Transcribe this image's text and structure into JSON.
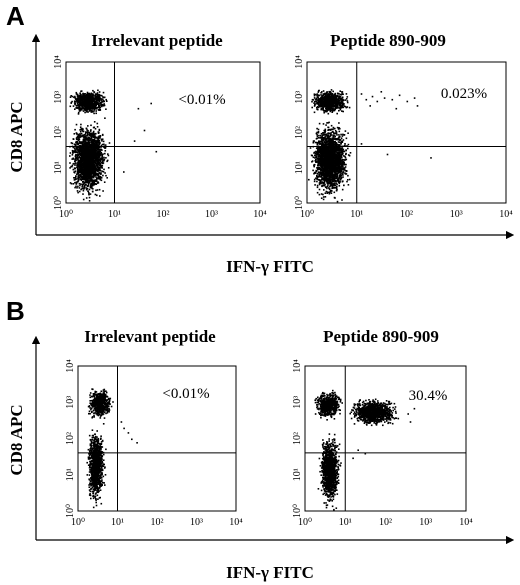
{
  "figure": {
    "panels": [
      {
        "letter": "A",
        "xlabel": "IFN-γ FITC",
        "ylabel": "CD8 APC"
      },
      {
        "letter": "B",
        "xlabel": "IFN-γ FITC",
        "ylabel": "CD8 APC"
      }
    ]
  },
  "chart_data": [
    {
      "type": "scatter",
      "panel": "A",
      "title": "Irrelevant peptide",
      "xlabel": "IFN-γ FITC",
      "ylabel": "CD8 APC",
      "x_scale": "log",
      "y_scale": "log",
      "xlim": [
        1,
        10000
      ],
      "ylim": [
        1,
        10000
      ],
      "x_ticks": [
        "10⁰",
        "10¹",
        "10²",
        "10³",
        "10⁴"
      ],
      "y_ticks": [
        "10⁰",
        "10¹",
        "10²",
        "10³",
        "10⁴"
      ],
      "gate": {
        "x": 10,
        "y": 40
      },
      "annotation": "<0.01%",
      "populations": [
        {
          "name": "CD8+ IFN-γ−",
          "x_range": [
            1,
            8
          ],
          "y_range": [
            300,
            2000
          ]
        },
        {
          "name": "CD8− IFN-γ−",
          "x_range": [
            1,
            8
          ],
          "y_range": [
            1,
            300
          ]
        }
      ],
      "points": [
        [
          30,
          500
        ],
        [
          40,
          120
        ],
        [
          25,
          60
        ],
        [
          70,
          30
        ],
        [
          15,
          8
        ],
        [
          55,
          700
        ]
      ]
    },
    {
      "type": "scatter",
      "panel": "A",
      "title": "Peptide 890-909",
      "xlabel": "IFN-γ FITC",
      "ylabel": "CD8 APC",
      "x_scale": "log",
      "y_scale": "log",
      "xlim": [
        1,
        10000
      ],
      "ylim": [
        1,
        10000
      ],
      "x_ticks": [
        "10⁰",
        "10¹",
        "10²",
        "10³",
        "10⁴"
      ],
      "y_ticks": [
        "10⁰",
        "10¹",
        "10²",
        "10³",
        "10⁴"
      ],
      "gate": {
        "x": 10,
        "y": 40
      },
      "annotation": "0.023%",
      "populations": [
        {
          "name": "CD8+ IFN-γ−",
          "x_range": [
            1,
            8
          ],
          "y_range": [
            300,
            2000
          ]
        },
        {
          "name": "CD8− IFN-γ−",
          "x_range": [
            1,
            8
          ],
          "y_range": [
            1,
            300
          ]
        }
      ],
      "points": [
        [
          15,
          900
        ],
        [
          20,
          1100
        ],
        [
          25,
          800
        ],
        [
          35,
          1000
        ],
        [
          50,
          900
        ],
        [
          70,
          1200
        ],
        [
          100,
          800
        ],
        [
          140,
          1000
        ],
        [
          18,
          600
        ],
        [
          12,
          1300
        ],
        [
          30,
          1500
        ],
        [
          60,
          500
        ],
        [
          160,
          600
        ],
        [
          40,
          25
        ],
        [
          300,
          20
        ],
        [
          12,
          50
        ]
      ]
    },
    {
      "type": "scatter",
      "panel": "B",
      "title": "Irrelevant peptide",
      "xlabel": "IFN-γ FITC",
      "ylabel": "CD8 APC",
      "x_scale": "log",
      "y_scale": "log",
      "xlim": [
        1,
        10000
      ],
      "ylim": [
        1,
        10000
      ],
      "x_ticks": [
        "10⁰",
        "10¹",
        "10²",
        "10³",
        "10⁴"
      ],
      "y_ticks": [
        "10⁰",
        "10¹",
        "10²",
        "10³",
        "10⁴"
      ],
      "gate": {
        "x": 10,
        "y": 40
      },
      "annotation": "<0.01%",
      "populations": [
        {
          "name": "CD8+ IFN-γ−",
          "x_range": [
            1.5,
            8
          ],
          "y_range": [
            300,
            3000
          ]
        },
        {
          "name": "CD8− IFN-γ−",
          "x_range": [
            1.5,
            5
          ],
          "y_range": [
            1,
            300
          ]
        }
      ],
      "points": [
        [
          14,
          200
        ],
        [
          18,
          150
        ],
        [
          22,
          100
        ],
        [
          30,
          80
        ],
        [
          12,
          300
        ]
      ]
    },
    {
      "type": "scatter",
      "panel": "B",
      "title": "Peptide 890-909",
      "xlabel": "IFN-γ FITC",
      "ylabel": "CD8 APC",
      "x_scale": "log",
      "y_scale": "log",
      "xlim": [
        1,
        10000
      ],
      "ylim": [
        1,
        10000
      ],
      "x_ticks": [
        "10⁰",
        "10¹",
        "10²",
        "10³",
        "10⁴"
      ],
      "y_ticks": [
        "10⁰",
        "10¹",
        "10²",
        "10³",
        "10⁴"
      ],
      "gate": {
        "x": 10,
        "y": 40
      },
      "annotation": "30.4%",
      "populations": [
        {
          "name": "CD8+ IFN-γ−",
          "x_range": [
            1.5,
            9
          ],
          "y_range": [
            300,
            2500
          ]
        },
        {
          "name": "CD8+ IFN-γ+",
          "x_range": [
            10,
            250
          ],
          "y_range": [
            200,
            1500
          ]
        },
        {
          "name": "CD8− IFN-γ−",
          "x_range": [
            2,
            8
          ],
          "y_range": [
            1,
            200
          ]
        }
      ],
      "points": [
        [
          350,
          500
        ],
        [
          400,
          300
        ],
        [
          500,
          700
        ],
        [
          20,
          50
        ],
        [
          30,
          40
        ],
        [
          15,
          30
        ]
      ]
    }
  ]
}
